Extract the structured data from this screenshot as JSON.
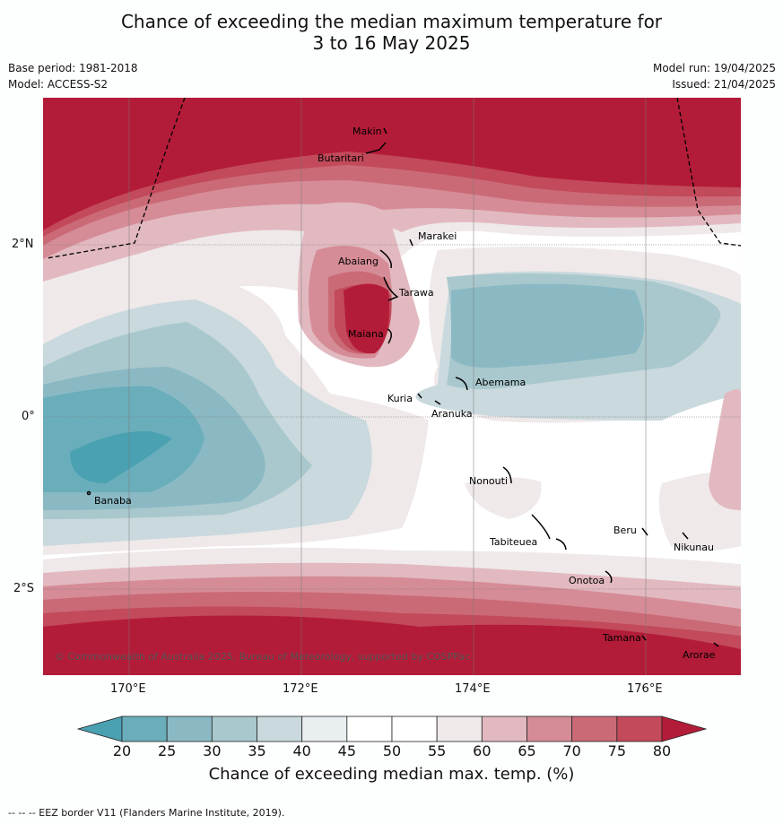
{
  "title_line1": "Chance of exceeding the median maximum temperature for",
  "title_line2": "3 to 16 May 2025",
  "meta": {
    "base_period": "Base period: 1981-2018",
    "model": "Model: ACCESS-S2",
    "model_run": "Model run: 19/04/2025",
    "issued": "Issued: 21/04/2025"
  },
  "map": {
    "lat_labels": [
      "2°N",
      "0°",
      "2°S"
    ],
    "lon_labels": [
      "170°E",
      "172°E",
      "174°E",
      "176°E"
    ],
    "places": [
      "Makin",
      "Butaritari",
      "Marakei",
      "Abaiang",
      "Tarawa",
      "Maiana",
      "Abemama",
      "Kuria",
      "Aranuka",
      "Banaba",
      "Nonouti",
      "Tabiteuea",
      "Beru",
      "Nikunau",
      "Onotoa",
      "Tamana",
      "Arorae"
    ],
    "copyright": "© Commonwealth of Australia 2025, Bureau of Meteorology, supported by COSPPac"
  },
  "colorbar": {
    "ticks": [
      "20",
      "25",
      "30",
      "35",
      "40",
      "45",
      "50",
      "55",
      "60",
      "65",
      "70",
      "75",
      "80"
    ],
    "colors": [
      "#6aaebb",
      "#8ab9c4",
      "#a9c8cd",
      "#c9d9dd",
      "#e9eef0",
      "#ffffff",
      "#ffffff",
      "#efe9ea",
      "#e2b9c0",
      "#d58c97",
      "#cb6a77",
      "#c24a5a"
    ],
    "low_color": "#4aa1b2",
    "high_color": "#b31c38",
    "title": "Chance of exceeding median max. temp. (%)"
  },
  "footer": "--  --  -- EEZ border V11 (Flanders Marine Institute, 2019)."
}
